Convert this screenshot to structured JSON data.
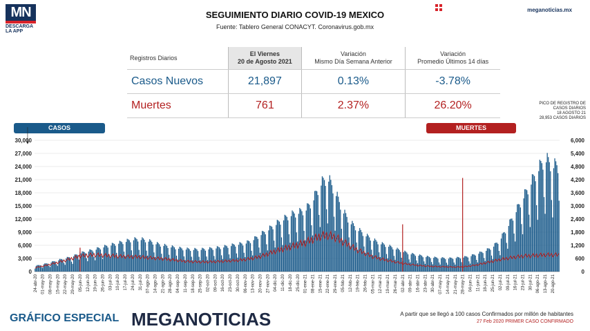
{
  "header": {
    "logo_mark": "MN",
    "logo_line1": "DESCARGA",
    "logo_line2": "LA APP",
    "title": "SEGUIMIENTO DIARIO COVID-19 MEXICO",
    "source": "Fuente: Tablero General CONACYT. Coronavirus.gob.mx",
    "site": "meganoticias.mx"
  },
  "table": {
    "headers": {
      "label": "Registros Diarios",
      "date_day": "El Viernes",
      "date": "20 de Agosto 2021",
      "var_day_1": "Variación",
      "var_day_2": "Mismo Día Semana Anterior",
      "var_avg_1": "Variación",
      "var_avg_2": "Promedio Últimos 14 días"
    },
    "cases": {
      "label": "Casos Nuevos",
      "value": "21,897",
      "var_day": "0.13%",
      "var_avg": "-3.78%"
    },
    "deaths": {
      "label": "Muertes",
      "value": "761",
      "var_day": "2.37%",
      "var_avg": "26.20%"
    }
  },
  "legend": {
    "cases": "CASOS",
    "deaths": "MUERTES"
  },
  "peak_note": {
    "line1": "PICO DE REGISTRO DE",
    "line2": "CASOS DIARIOS",
    "line3": "18 AGOSTO 21",
    "line4": "28,953 CASOS DIARIOS"
  },
  "footer": {
    "label": "GRÁFICO ESPECIAL",
    "brand": "MEGANOTICIAS",
    "note1": "A partir que se llegó a 100 casos Confirmados por millón de habitantes",
    "note2": "27 Feb 2020 PRIMER CASO CONFIRMADO"
  },
  "colors": {
    "cases": "#1a5a8a",
    "deaths": "#b32020",
    "brand": "#16325c"
  },
  "chart_data": {
    "type": "bar",
    "series": [
      {
        "name": "CASOS",
        "axis": "left",
        "kind": "bar"
      },
      {
        "name": "MUERTES",
        "axis": "right",
        "kind": "line"
      }
    ],
    "y_left": {
      "ticks": [
        "0",
        "3,000",
        "6,000",
        "9,000",
        "12,000",
        "15,000",
        "18,000",
        "21,000",
        "24,000",
        "27,000",
        "30,000"
      ],
      "ylim": [
        0,
        30000
      ]
    },
    "y_right": {
      "ticks": [
        "0",
        "600",
        "1,200",
        "1,800",
        "2,400",
        "3,000",
        "3,600",
        "4,200",
        "4,800",
        "5,400",
        "6,000"
      ],
      "ylim": [
        0,
        6000
      ]
    },
    "x_tick_labels": [
      "24-abr-20",
      "01-may-20",
      "08-may-20",
      "15-may-20",
      "22-may-20",
      "29-may-20",
      "05-jun-20",
      "12-jun-20",
      "19-jun-20",
      "26-jun-20",
      "03-jul-20",
      "10-jul-20",
      "17-jul-20",
      "24-jul-20",
      "31-jul-20",
      "07-ago-20",
      "14-ago-20",
      "21-ago-20",
      "28-ago-20",
      "04-sep-20",
      "11-sep-20",
      "18-sep-20",
      "25-sep-20",
      "02-oct-20",
      "09-oct-20",
      "16-oct-20",
      "23-oct-20",
      "30-oct-20",
      "06-nov-20",
      "13-nov-20",
      "20-nov-20",
      "27-nov-20",
      "04-dic-20",
      "11-dic-20",
      "18-dic-20",
      "25-dic-20",
      "01-ene-21",
      "08-ene-21",
      "15-ene-21",
      "22-ene-21",
      "29-ene-21",
      "05-feb-21",
      "12-feb-21",
      "19-feb-21",
      "26-feb-21",
      "05-mar-21",
      "12-mar-21",
      "19-mar-21",
      "26-mar-21",
      "02-abr-21",
      "09-abr-21",
      "16-abr-21",
      "23-abr-21",
      "30-abr-21",
      "07-may-21",
      "14-may-21",
      "21-may-21",
      "28-may-21",
      "04-jun-21",
      "11-jun-21",
      "18-jun-21",
      "25-jun-21",
      "02-jul-21",
      "09-jul-21",
      "16-jul-21",
      "23-jul-21",
      "30-jul-21",
      "06-ago-21",
      "13-ago-21",
      "20-ago-21"
    ],
    "weekly_cases": [
      1200,
      1500,
      1900,
      2400,
      2800,
      3200,
      3900,
      4300,
      4700,
      5200,
      5600,
      6000,
      6400,
      6800,
      6900,
      6600,
      6000,
      5600,
      5300,
      5000,
      4800,
      4700,
      4700,
      4800,
      5000,
      5200,
      5500,
      5800,
      6000,
      6700,
      7800,
      8800,
      10000,
      11000,
      12000,
      12500,
      13000,
      15000,
      18500,
      20000,
      17000,
      13000,
      10500,
      9000,
      7800,
      6800,
      6000,
      5500,
      4900,
      4300,
      3800,
      3500,
      3200,
      3000,
      2900,
      2800,
      2900,
      3000,
      3300,
      3800,
      4400,
      5200,
      6800,
      9500,
      12500,
      15500,
      18500,
      21500,
      24000,
      22500
    ],
    "weekly_deaths": [
      180,
      250,
      330,
      420,
      520,
      620,
      720,
      760,
      780,
      760,
      740,
      720,
      700,
      690,
      680,
      650,
      620,
      600,
      560,
      520,
      480,
      460,
      450,
      450,
      460,
      480,
      500,
      520,
      560,
      620,
      700,
      820,
      950,
      1050,
      1150,
      1250,
      1350,
      1500,
      1650,
      1700,
      1600,
      1400,
      1200,
      1000,
      850,
      700,
      600,
      520,
      450,
      380,
      330,
      290,
      260,
      240,
      230,
      220,
      210,
      220,
      260,
      320,
      400,
      480,
      560,
      620,
      680,
      720,
      740,
      760,
      780,
      780
    ],
    "daily_spikes": [
      {
        "date": "05-jun-20",
        "cases_peak": 4500,
        "deaths_peak": 1092
      },
      {
        "date": "02-abr-21",
        "deaths_peak": 2160
      },
      {
        "date": "28-may-21",
        "deaths_peak": 4280
      },
      {
        "date": "18-ago-21",
        "cases_peak": 28953
      }
    ]
  }
}
